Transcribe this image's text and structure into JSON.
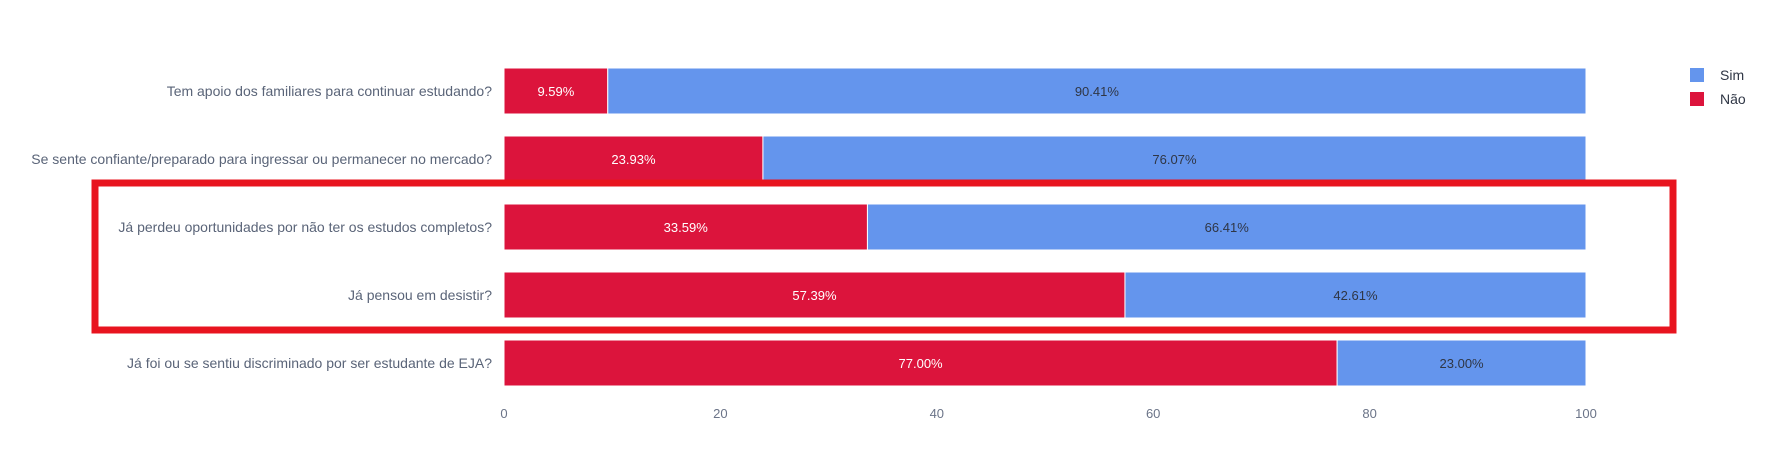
{
  "chart_data": {
    "type": "bar",
    "orientation": "horizontal",
    "stacked": true,
    "categories": [
      "Tem apoio dos familiares para continuar estudando?",
      "Se sente confiante/preparado para ingressar ou permanecer no mercado?",
      "Já perdeu oportunidades por não ter os estudos completos?",
      "Já pensou em desistir?",
      "Já foi ou se sentiu discriminado por ser estudante de EJA?"
    ],
    "series": [
      {
        "name": "Não",
        "color": "#dc143c",
        "values": [
          9.59,
          23.93,
          33.59,
          57.39,
          77.0
        ],
        "labels": [
          "9.59%",
          "23.93%",
          "33.59%",
          "57.39%",
          "77.00%"
        ]
      },
      {
        "name": "Sim",
        "color": "#6495ed",
        "values": [
          90.41,
          76.07,
          66.41,
          42.61,
          23.0
        ],
        "labels": [
          "90.41%",
          "76.07%",
          "66.41%",
          "42.61%",
          "23.00%"
        ]
      }
    ],
    "x_ticks": [
      "0",
      "20",
      "40",
      "60",
      "80",
      "100"
    ],
    "xlim": [
      0,
      100
    ],
    "legend": {
      "placement": "top-right",
      "items": [
        {
          "name": "Sim",
          "color": "#6495ed"
        },
        {
          "name": "Não",
          "color": "#dc143c"
        }
      ]
    },
    "highlight": {
      "color": "#e8141f",
      "categories": [
        "Já perdeu oportunidades por não ter os estudos completos?",
        "Já pensou em desistir?"
      ]
    },
    "grid": false
  }
}
